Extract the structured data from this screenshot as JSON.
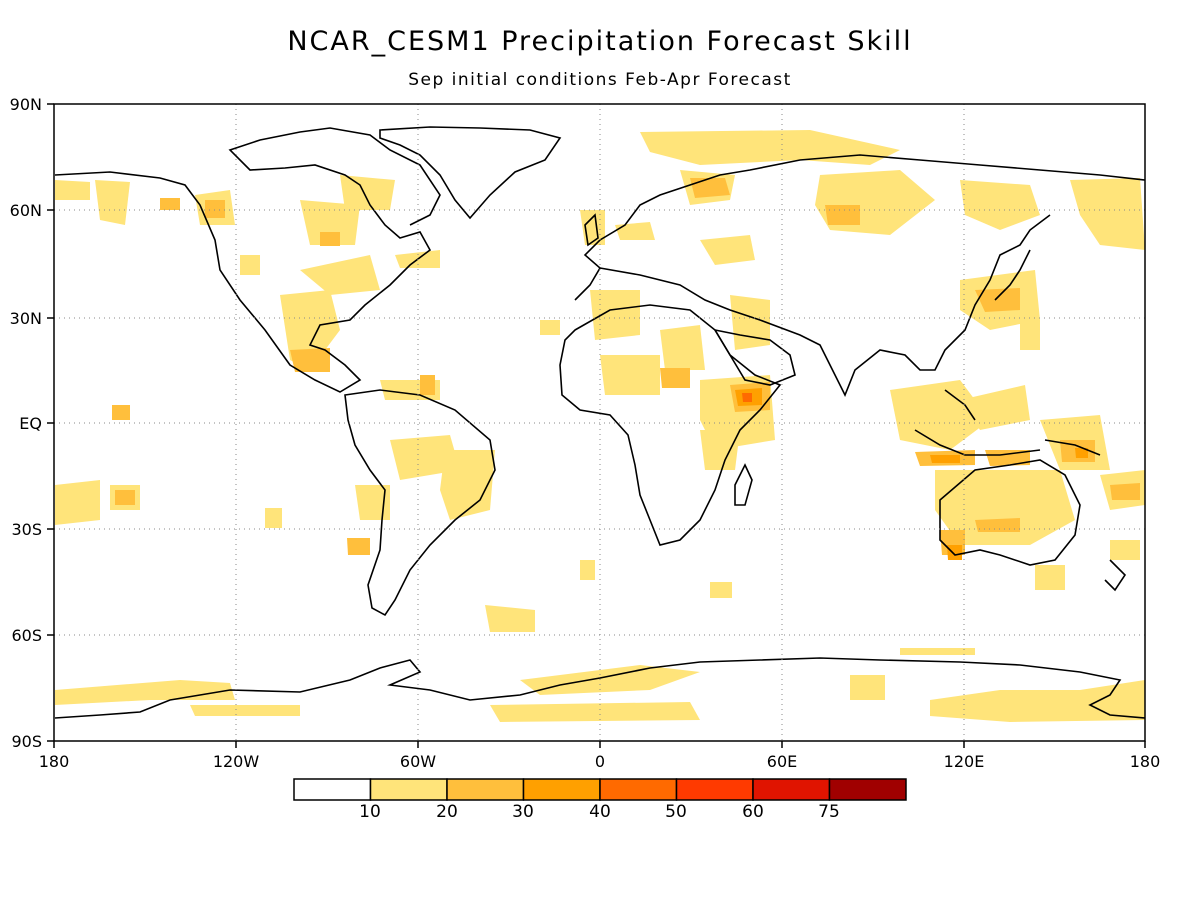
{
  "title": "NCAR_CESM1 Precipitation Forecast Skill",
  "subtitle": "Sep initial conditions  Feb-Apr Forecast",
  "lat_labels": [
    "90N",
    "60N",
    "30N",
    "EQ",
    "30S",
    "60S",
    "90S"
  ],
  "lon_labels": [
    "180",
    "120W",
    "60W",
    "0",
    "60E",
    "120E",
    "180"
  ],
  "colorbar": {
    "labels": [
      "10",
      "20",
      "30",
      "40",
      "50",
      "60",
      "75"
    ],
    "colors": [
      "#ffffff",
      "#ffe47a",
      "#ffbf3c",
      "#ffa000",
      "#ff6a00",
      "#ff3a00",
      "#e01400",
      "#a00000"
    ]
  }
}
